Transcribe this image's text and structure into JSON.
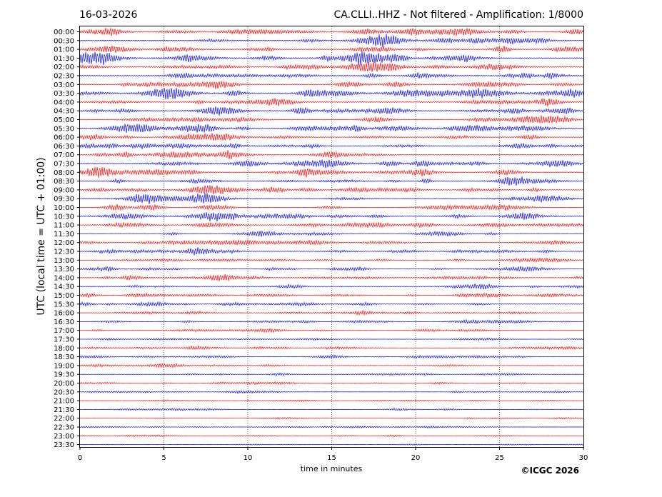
{
  "header": {
    "date": "16-03-2026",
    "title": "CA.CLLI..HHZ - Not filtered - Amplification: 1/8000"
  },
  "copyright": "©ICGC 2026",
  "colors": {
    "odd_trace": "#ff0000",
    "even_trace": "#0000ff",
    "grid": "#000000"
  },
  "chart_data": {
    "type": "line",
    "xlabel": "time in minutes",
    "ylabel": "UTC (local time = UTC + 01:00)",
    "xlim": [
      0,
      30
    ],
    "x_ticks": [
      "0",
      "5",
      "10",
      "15",
      "20",
      "25",
      "30"
    ],
    "x_tick_values": [
      0,
      5,
      10,
      15,
      20,
      25,
      30
    ],
    "grid": "vertical dotted at x ticks",
    "series": [
      {
        "label": "00:00",
        "color": "#ff0000",
        "amplitude": 0.9
      },
      {
        "label": "00:30",
        "color": "#0000ff",
        "amplitude": 0.9
      },
      {
        "label": "01:00",
        "color": "#ff0000",
        "amplitude": 0.9
      },
      {
        "label": "01:30",
        "color": "#0000ff",
        "amplitude": 0.9
      },
      {
        "label": "02:00",
        "color": "#ff0000",
        "amplitude": 0.9
      },
      {
        "label": "02:30",
        "color": "#0000ff",
        "amplitude": 0.9
      },
      {
        "label": "03:00",
        "color": "#ff0000",
        "amplitude": 0.85
      },
      {
        "label": "03:30",
        "color": "#0000ff",
        "amplitude": 1.0
      },
      {
        "label": "04:00",
        "color": "#ff0000",
        "amplitude": 0.8
      },
      {
        "label": "04:30",
        "color": "#0000ff",
        "amplitude": 0.8
      },
      {
        "label": "05:00",
        "color": "#ff0000",
        "amplitude": 0.8
      },
      {
        "label": "05:30",
        "color": "#0000ff",
        "amplitude": 0.85
      },
      {
        "label": "06:00",
        "color": "#ff0000",
        "amplitude": 0.7
      },
      {
        "label": "06:30",
        "color": "#0000ff",
        "amplitude": 0.7
      },
      {
        "label": "07:00",
        "color": "#ff0000",
        "amplitude": 0.8
      },
      {
        "label": "07:30",
        "color": "#0000ff",
        "amplitude": 0.8
      },
      {
        "label": "08:00",
        "color": "#ff0000",
        "amplitude": 0.8
      },
      {
        "label": "08:30",
        "color": "#0000ff",
        "amplitude": 0.75
      },
      {
        "label": "09:00",
        "color": "#ff0000",
        "amplitude": 0.65
      },
      {
        "label": "09:30",
        "color": "#0000ff",
        "amplitude": 0.6
      },
      {
        "label": "10:00",
        "color": "#ff0000",
        "amplitude": 0.55
      },
      {
        "label": "10:30",
        "color": "#0000ff",
        "amplitude": 0.65
      },
      {
        "label": "11:00",
        "color": "#ff0000",
        "amplitude": 0.55
      },
      {
        "label": "11:30",
        "color": "#0000ff",
        "amplitude": 0.5
      },
      {
        "label": "12:00",
        "color": "#ff0000",
        "amplitude": 0.5
      },
      {
        "label": "12:30",
        "color": "#0000ff",
        "amplitude": 0.5
      },
      {
        "label": "13:00",
        "color": "#ff0000",
        "amplitude": 0.45
      },
      {
        "label": "13:30",
        "color": "#0000ff",
        "amplitude": 0.45
      },
      {
        "label": "14:00",
        "color": "#ff0000",
        "amplitude": 0.45
      },
      {
        "label": "14:30",
        "color": "#0000ff",
        "amplitude": 0.45
      },
      {
        "label": "15:00",
        "color": "#ff0000",
        "amplitude": 0.4
      },
      {
        "label": "15:30",
        "color": "#0000ff",
        "amplitude": 0.4
      },
      {
        "label": "16:00",
        "color": "#ff0000",
        "amplitude": 0.4
      },
      {
        "label": "16:30",
        "color": "#0000ff",
        "amplitude": 0.35
      },
      {
        "label": "17:00",
        "color": "#ff0000",
        "amplitude": 0.35
      },
      {
        "label": "17:30",
        "color": "#0000ff",
        "amplitude": 0.3
      },
      {
        "label": "18:00",
        "color": "#ff0000",
        "amplitude": 0.3
      },
      {
        "label": "18:30",
        "color": "#0000ff",
        "amplitude": 0.3
      },
      {
        "label": "19:00",
        "color": "#ff0000",
        "amplitude": 0.28
      },
      {
        "label": "19:30",
        "color": "#0000ff",
        "amplitude": 0.28
      },
      {
        "label": "20:00",
        "color": "#ff0000",
        "amplitude": 0.25
      },
      {
        "label": "20:30",
        "color": "#0000ff",
        "amplitude": 0.25
      },
      {
        "label": "21:00",
        "color": "#ff0000",
        "amplitude": 0.22
      },
      {
        "label": "21:30",
        "color": "#0000ff",
        "amplitude": 0.22
      },
      {
        "label": "22:00",
        "color": "#ff0000",
        "amplitude": 0.22
      },
      {
        "label": "22:30",
        "color": "#0000ff",
        "amplitude": 0.22
      },
      {
        "label": "23:00",
        "color": "#ff0000",
        "amplitude": 0.22
      },
      {
        "label": "23:30",
        "color": "#0000ff",
        "amplitude": 0.15
      }
    ]
  }
}
